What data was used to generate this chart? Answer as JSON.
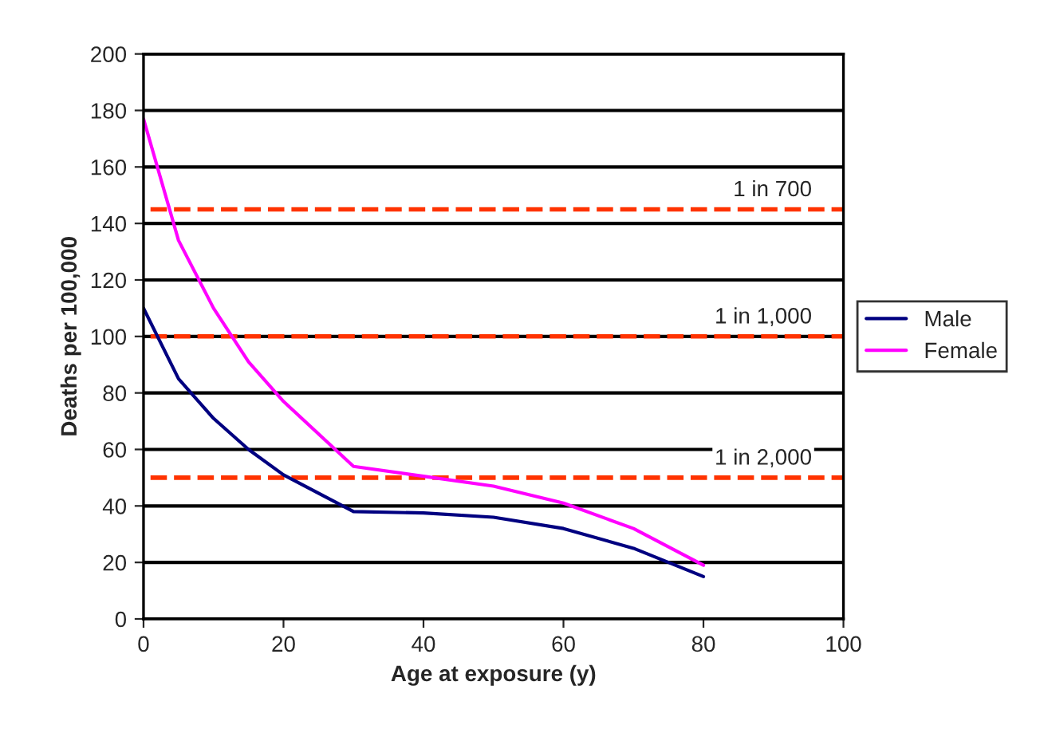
{
  "chart_data": {
    "type": "line",
    "xlabel": "Age at exposure (y)",
    "ylabel": "Deaths per 100,000",
    "x": [
      0,
      5,
      10,
      15,
      20,
      30,
      40,
      50,
      60,
      70,
      80
    ],
    "series": [
      {
        "name": "Male",
        "color": "#000080",
        "values": [
          110,
          85,
          71,
          60,
          51,
          38,
          37.5,
          36,
          32,
          25,
          15
        ]
      },
      {
        "name": "Female",
        "color": "#ff00ff",
        "values": [
          177,
          134,
          110,
          91,
          77,
          54,
          50.5,
          47,
          41,
          32,
          19
        ]
      }
    ],
    "xlim": [
      0,
      100
    ],
    "xticks": [
      0,
      20,
      40,
      60,
      80,
      100
    ],
    "ylim": [
      0,
      200
    ],
    "yticks": [
      0,
      20,
      40,
      60,
      80,
      100,
      120,
      140,
      160,
      180,
      200
    ],
    "grid": "y",
    "legend": "right",
    "marker": "none",
    "line_style": "solid",
    "ref_lines": [
      {
        "axis": "y",
        "value": 145,
        "label": "1 in 700",
        "color": "#ff3300",
        "line_style": "dashed"
      },
      {
        "axis": "y",
        "value": 100,
        "label": "1 in 1,000",
        "color": "#ff3300",
        "line_style": "dashed"
      },
      {
        "axis": "y",
        "value": 50,
        "label": "1 in 2,000",
        "color": "#ff3300",
        "line_style": "dashed"
      }
    ]
  }
}
